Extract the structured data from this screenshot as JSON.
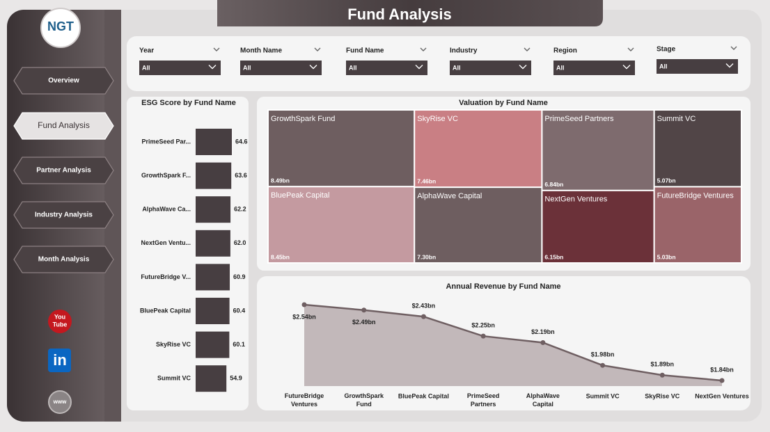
{
  "header": {
    "title": "Fund Analysis",
    "logo": "NGT"
  },
  "nav": [
    "Overview",
    "Fund Analysis",
    "Partner Analysis",
    "Industry Analysis",
    "Month Analysis"
  ],
  "nav_active": 1,
  "filters": [
    {
      "label": "Year",
      "value": "All"
    },
    {
      "label": "Month Name",
      "value": "All"
    },
    {
      "label": "Fund Name",
      "value": "All"
    },
    {
      "label": "Industry",
      "value": "All"
    },
    {
      "label": "Region",
      "value": "All"
    },
    {
      "label": "Stage",
      "value": "All"
    }
  ],
  "icons": {
    "youtube": [
      "You",
      "Tube"
    ],
    "linkedin": "in",
    "web": "www"
  },
  "chart_data": [
    {
      "type": "bar",
      "orientation": "horizontal",
      "title": "ESG Score by Fund Name",
      "categories": [
        "PrimeSeed Par...",
        "GrowthSpark F...",
        "AlphaWave Ca...",
        "NextGen Ventu...",
        "FutureBridge V...",
        "BluePeak Capital",
        "SkyRise VC",
        "Summit VC"
      ],
      "values": [
        64.6,
        63.6,
        62.2,
        62.0,
        60.9,
        60.4,
        60.1,
        54.9
      ],
      "value_labels": [
        "64.6",
        "63.6",
        "62.2",
        "62.0",
        "60.9",
        "60.4",
        "60.1",
        "54.9"
      ],
      "color": "#473e41"
    },
    {
      "type": "treemap",
      "title": "Valuation by Fund Name",
      "categories": [
        "GrowthSpark Fund",
        "BluePeak Capital",
        "SkyRise VC",
        "AlphaWave Capital",
        "PrimeSeed Partners",
        "NextGen Ventures",
        "Summit VC",
        "FutureBridge Ventures"
      ],
      "values": [
        8.49,
        8.45,
        7.46,
        7.3,
        6.84,
        6.15,
        5.07,
        5.03
      ],
      "value_labels": [
        "8.49bn",
        "8.45bn",
        "7.46bn",
        "7.30bn",
        "6.84bn",
        "6.15bn",
        "5.07bn",
        "5.03bn"
      ],
      "colors": [
        "#6e5e60",
        "#c49aa0",
        "#c97f84",
        "#6e5e60",
        "#7e6b6e",
        "#6b3139",
        "#514547",
        "#9a6469"
      ]
    },
    {
      "type": "line",
      "title": "Annual Revenue by Fund Name",
      "categories": [
        "FutureBridge Ventures",
        "GrowthSpark Fund",
        "BluePeak Capital",
        "PrimeSeed Partners",
        "AlphaWave Capital",
        "Summit VC",
        "SkyRise VC",
        "NextGen Ventures"
      ],
      "values": [
        2.54,
        2.49,
        2.43,
        2.25,
        2.19,
        1.98,
        1.89,
        1.84
      ],
      "value_labels": [
        "$2.54bn",
        "$2.49bn",
        "$2.43bn",
        "$2.25bn",
        "$2.19bn",
        "$1.98bn",
        "$1.89bn",
        "$1.84bn"
      ],
      "color": "#6f5f62",
      "area_color": "#c2b8ba"
    }
  ]
}
